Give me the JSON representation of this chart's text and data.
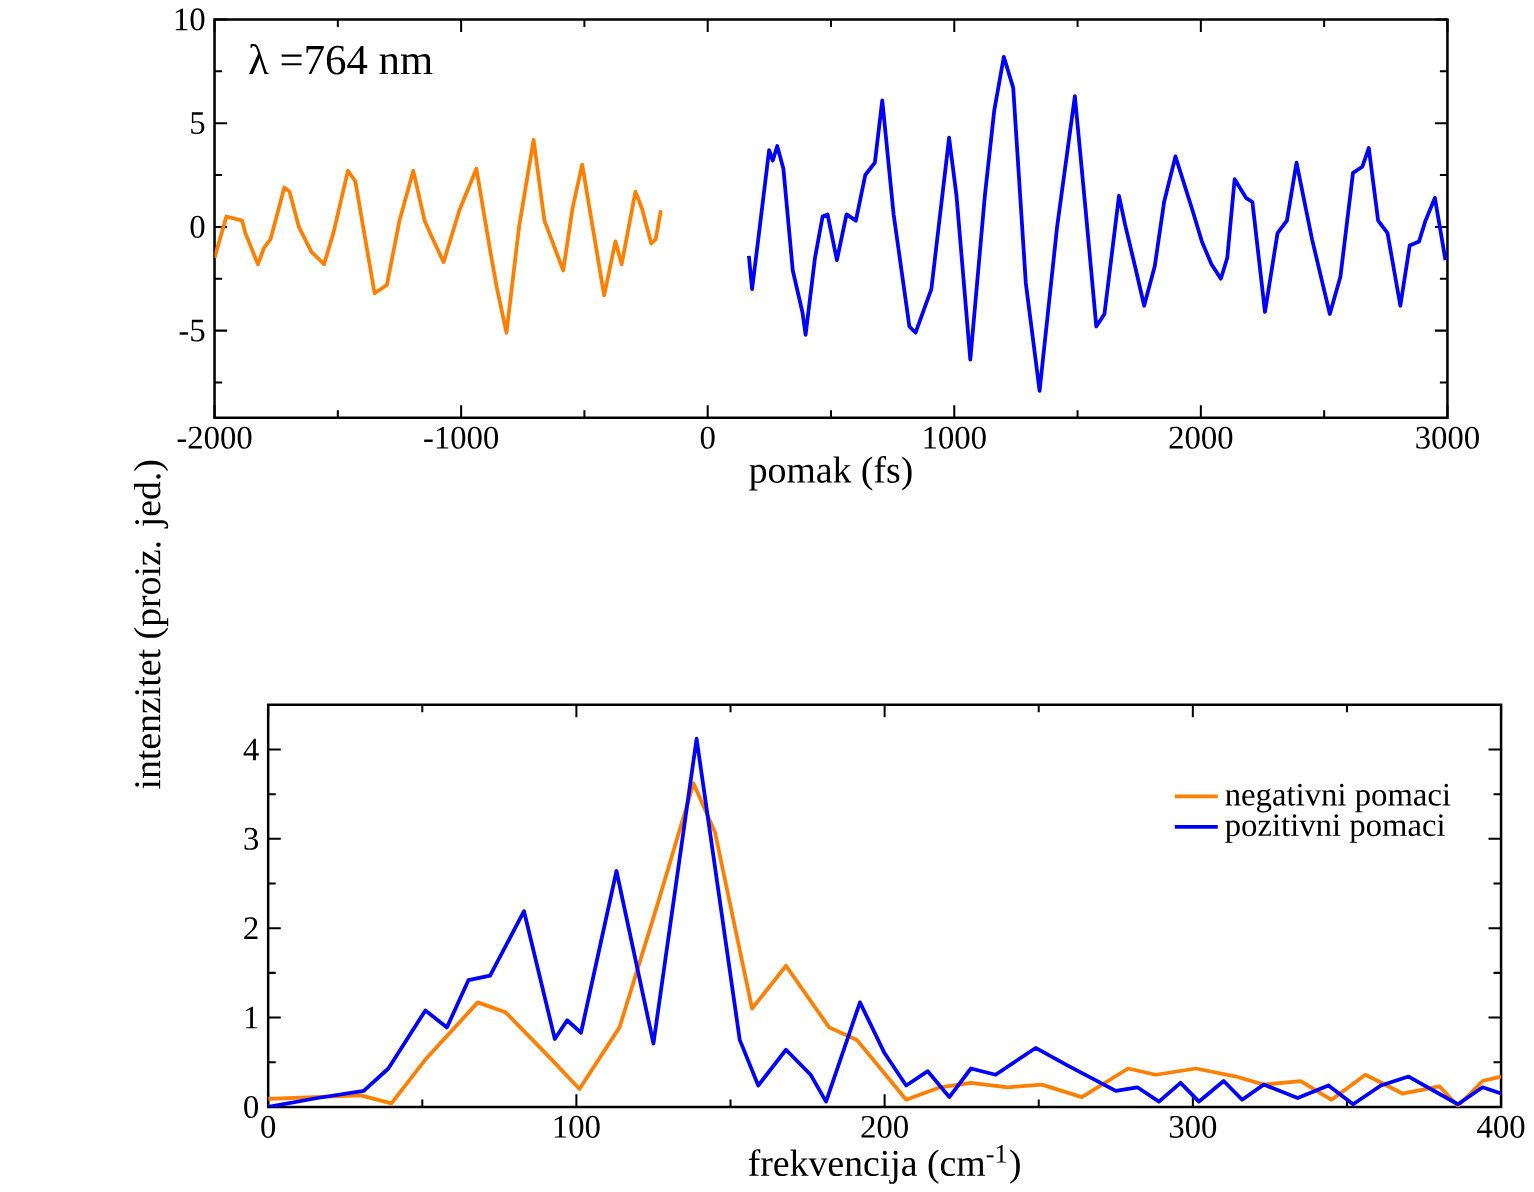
{
  "chart_data": [
    {
      "type": "line",
      "xlabel": "pomak (fs)",
      "annotations": [
        "λ =764 nm"
      ],
      "xlim": [
        -2000,
        3000
      ],
      "ylim": [
        -9.2,
        10
      ],
      "xticks": [
        -2000,
        {
          "value": -1500,
          "label": null
        },
        -1000,
        {
          "value": -500,
          "label": null
        },
        0,
        {
          "value": 500,
          "label": null
        },
        1000,
        {
          "value": 1500,
          "label": null
        },
        2000,
        {
          "value": 2500,
          "label": null
        },
        3000
      ],
      "yticks": [
        {
          "value": -7.5,
          "label": null
        },
        -5,
        {
          "value": -2.5,
          "label": null
        },
        0,
        {
          "value": 2.5,
          "label": null
        },
        5,
        {
          "value": 7.5,
          "label": null
        },
        10
      ],
      "series": [
        {
          "color": "#ff7f00",
          "x": [
            -2000,
            -1952,
            -1888,
            -1875,
            -1824,
            -1799,
            -1773,
            -1717,
            -1696,
            -1658,
            -1607,
            -1556,
            -1518,
            -1459,
            -1429,
            -1351,
            -1301,
            -1250,
            -1194,
            -1148,
            -1122,
            -1071,
            -1007,
            -938,
            -880,
            -854,
            -816,
            -765,
            -706,
            -662,
            -624,
            -586,
            -548,
            -509,
            -420,
            -374,
            -349,
            -293,
            -267,
            -229,
            -211,
            -190
          ],
          "values": [
            -1.5,
            0.5,
            0.3,
            -0.3,
            -1.8,
            -1.0,
            -0.6,
            1.9,
            1.7,
            0,
            -1.2,
            -1.8,
            -0.3,
            2.7,
            2.2,
            -3.2,
            -2.8,
            0.3,
            2.7,
            0.3,
            -0.4,
            -1.7,
            0.8,
            2.8,
            -1.3,
            -3.0,
            -5.1,
            0,
            4.2,
            0.3,
            -0.9,
            -2.1,
            0.9,
            3.0,
            -3.3,
            -0.7,
            -1.8,
            1.7,
            0.9,
            -0.8,
            -0.6,
            0.8
          ]
        },
        {
          "color": "#0000ff",
          "x": [
            167,
            180,
            205,
            249,
            264,
            282,
            307,
            345,
            384,
            397,
            435,
            466,
            486,
            524,
            563,
            601,
            639,
            678,
            708,
            754,
            818,
            843,
            907,
            979,
            1009,
            1065,
            1124,
            1162,
            1201,
            1239,
            1290,
            1346,
            1417,
            1489,
            1532,
            1576,
            1609,
            1668,
            1693,
            1737,
            1770,
            1813,
            1851,
            1897,
            1966,
            2004,
            2043,
            2081,
            2107,
            2137,
            2183,
            2209,
            2260,
            2311,
            2349,
            2388,
            2451,
            2523,
            2566,
            2617,
            2655,
            2681,
            2719,
            2757,
            2809,
            2847,
            2885,
            2911,
            2949,
            2992
          ],
          "values": [
            -1.4,
            -3.0,
            -0.6,
            3.7,
            3.2,
            3.9,
            2.8,
            -2.1,
            -4.1,
            -5.2,
            -1.5,
            0.5,
            0.6,
            -1.6,
            0.6,
            0.3,
            2.5,
            3.1,
            6.1,
            0.6,
            -4.8,
            -5.1,
            -3.0,
            4.3,
            1.5,
            -6.4,
            1.5,
            5.6,
            8.2,
            6.7,
            -2.7,
            -7.9,
            0,
            6.3,
            0.9,
            -4.8,
            -4.2,
            1.5,
            0.1,
            -2.1,
            -3.8,
            -1.9,
            1.2,
            3.4,
            0.8,
            -0.7,
            -1.8,
            -2.5,
            -1.5,
            2.3,
            1.4,
            1.2,
            -4.1,
            -0.3,
            0.3,
            3.1,
            -0.6,
            -4.2,
            -2.4,
            2.6,
            2.9,
            3.8,
            0.3,
            -0.3,
            -3.8,
            -0.9,
            -0.7,
            0.3,
            1.4,
            -1.6
          ]
        }
      ]
    },
    {
      "type": "line",
      "xlabel": "frekvencija (cm$^{-1}$)",
      "ylabel": "intenzitet (proiz. jed.)",
      "legend": "top right",
      "xlim": [
        0,
        400
      ],
      "ylim": [
        0,
        4.5
      ],
      "xticks": [
        0,
        {
          "value": 50,
          "label": null
        },
        100,
        {
          "value": 150,
          "label": null
        },
        200,
        {
          "value": 250,
          "label": null
        },
        300,
        {
          "value": 350,
          "label": null
        },
        400
      ],
      "yticks": [
        0,
        {
          "value": 0.5,
          "label": null
        },
        1,
        {
          "value": 1.5,
          "label": null
        },
        2,
        {
          "value": 2.5,
          "label": null
        },
        3,
        {
          "value": 3.5,
          "label": null
        },
        4
      ],
      "series": [
        {
          "name": "negativni pomaci",
          "color": "#ff7f00",
          "x": [
            0,
            30,
            40,
            51,
            68,
            77,
            92,
            101,
            114,
            126,
            138,
            145,
            157,
            168,
            182,
            191,
            207,
            218,
            228,
            240,
            251,
            264,
            279,
            288,
            301,
            314,
            323,
            335,
            345,
            356,
            368,
            380,
            386,
            394,
            400
          ],
          "values": [
            0.09,
            0.13,
            0.04,
            0.53,
            1.17,
            1.06,
            0.53,
            0.2,
            0.89,
            2.23,
            3.62,
            3.07,
            1.1,
            1.58,
            0.89,
            0.75,
            0.08,
            0.22,
            0.27,
            0.22,
            0.25,
            0.11,
            0.43,
            0.36,
            0.43,
            0.34,
            0.25,
            0.29,
            0.08,
            0.36,
            0.15,
            0.23,
            0.01,
            0.29,
            0.34
          ]
        },
        {
          "name": "pozitivni pomaci",
          "color": "#0000ff",
          "x": [
            0,
            16,
            31,
            39,
            51,
            58,
            65,
            72,
            83,
            93,
            97,
            101.5,
            113,
            125,
            139,
            153,
            159,
            168,
            176,
            181,
            192,
            200,
            207,
            214,
            221,
            228,
            236,
            249,
            259,
            275,
            282,
            289,
            296,
            302,
            310,
            316,
            323,
            334,
            344,
            352,
            361,
            370,
            386,
            394,
            400
          ],
          "values": [
            0,
            0.1,
            0.18,
            0.43,
            1.08,
            0.89,
            1.42,
            1.47,
            2.19,
            0.76,
            0.97,
            0.83,
            2.64,
            0.71,
            4.12,
            0.75,
            0.24,
            0.64,
            0.36,
            0.06,
            1.17,
            0.6,
            0.24,
            0.4,
            0.11,
            0.43,
            0.36,
            0.66,
            0.47,
            0.18,
            0.22,
            0.06,
            0.27,
            0.06,
            0.29,
            0.08,
            0.25,
            0.1,
            0.24,
            0.03,
            0.24,
            0.34,
            0.03,
            0.22,
            0.15
          ]
        }
      ]
    }
  ]
}
